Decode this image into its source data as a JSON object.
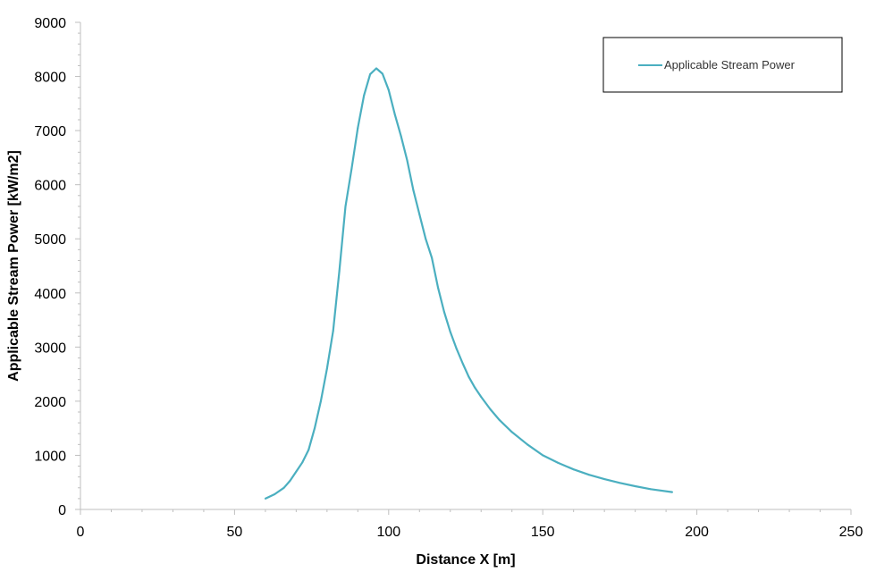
{
  "chart_data": {
    "type": "line",
    "title": "",
    "xlabel": "Distance X [m]",
    "ylabel": "Applicable Stream Power [kW/m2]",
    "xlim": [
      0,
      250
    ],
    "ylim": [
      0,
      9000
    ],
    "x_ticks": [
      "0",
      "50",
      "100",
      "150",
      "200",
      "250"
    ],
    "y_ticks": [
      "0",
      "1000",
      "2000",
      "3000",
      "4000",
      "5000",
      "6000",
      "7000",
      "8000",
      "9000"
    ],
    "grid": false,
    "legend_position": "top-right",
    "series": [
      {
        "name": "Applicable Stream Power",
        "color": "#4bafc0",
        "x": [
          60,
          63,
          66,
          68,
          70,
          72,
          74,
          76,
          78,
          80,
          82,
          84,
          86,
          88,
          90,
          92,
          94,
          96,
          98,
          100,
          102,
          104,
          106,
          108,
          110,
          112,
          114,
          116,
          118,
          120,
          122,
          124,
          126,
          128,
          130,
          133,
          136,
          140,
          145,
          150,
          155,
          160,
          165,
          170,
          175,
          180,
          185,
          192
        ],
        "y": [
          200,
          280,
          400,
          530,
          700,
          870,
          1100,
          1500,
          2000,
          2600,
          3300,
          4400,
          5600,
          6300,
          7050,
          7650,
          8040,
          8150,
          8050,
          7750,
          7300,
          6900,
          6450,
          5900,
          5450,
          5000,
          4650,
          4100,
          3650,
          3280,
          2970,
          2700,
          2450,
          2250,
          2080,
          1850,
          1650,
          1430,
          1200,
          1000,
          860,
          740,
          640,
          560,
          490,
          430,
          375,
          320
        ]
      }
    ]
  }
}
